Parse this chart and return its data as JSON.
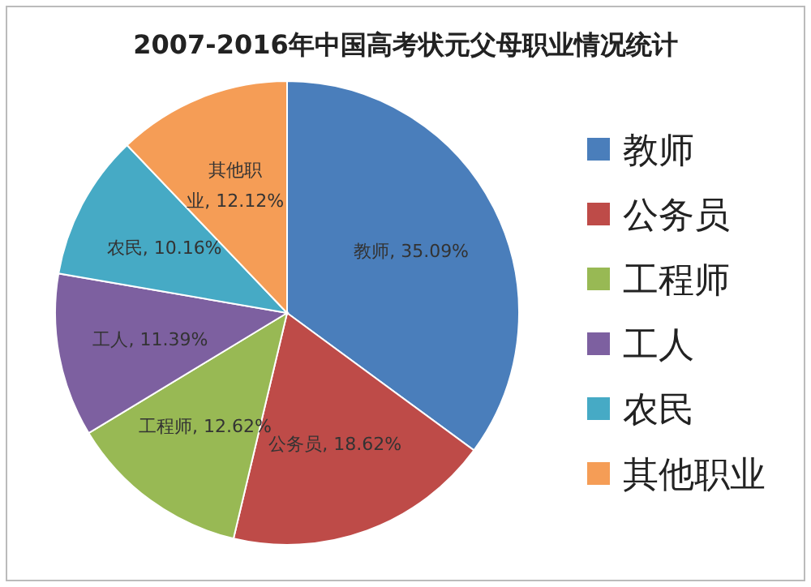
{
  "chart_data": {
    "type": "pie",
    "title": "2007-2016年中国高考状元父母职业情况统计",
    "categories": [
      "教师",
      "公务员",
      "工程师",
      "工人",
      "农民",
      "其他职业"
    ],
    "values": [
      35.09,
      18.62,
      12.62,
      11.39,
      10.16,
      12.12
    ],
    "colors": [
      "#4a7ebb",
      "#be4b48",
      "#98b954",
      "#7d60a0",
      "#46aac5",
      "#f59d56"
    ],
    "value_labels": [
      "教师, 35.09%",
      "公务员, 18.62%",
      "工程师, 12.62%",
      "工人, 11.39%",
      "农民, 10.16%",
      "其他职业, 12.12%"
    ],
    "legend": "right"
  }
}
